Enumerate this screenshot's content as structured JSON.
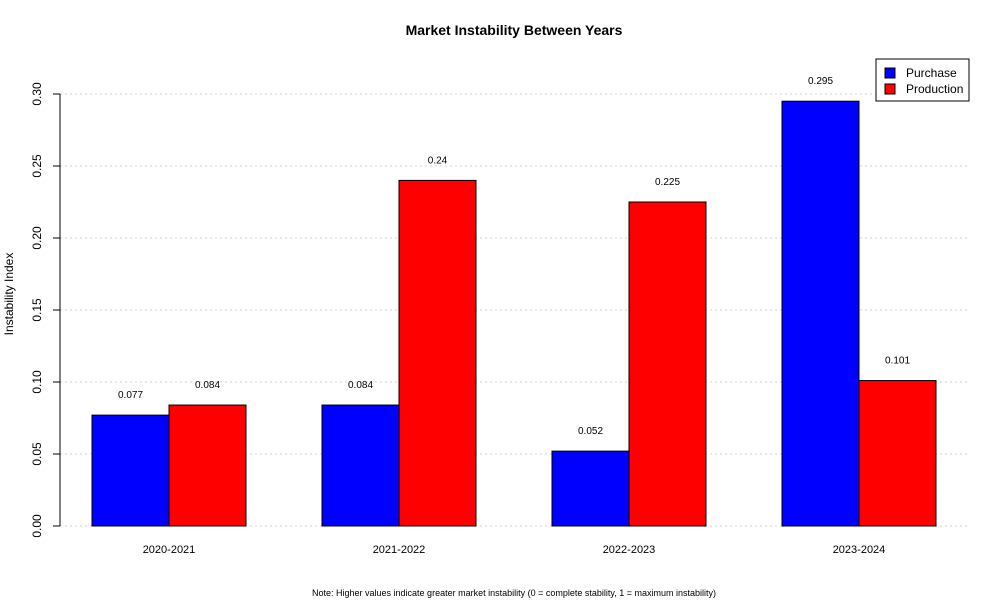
{
  "chart_data": {
    "type": "bar",
    "title": "Market Instability Between Years",
    "xlabel": "",
    "ylabel": "Instability Index",
    "categories": [
      "2020-2021",
      "2021-2022",
      "2022-2023",
      "2023-2024"
    ],
    "series": [
      {
        "name": "Purchase",
        "color": "#0000ff",
        "values": [
          0.077,
          0.084,
          0.052,
          0.295
        ],
        "labels": [
          "0.077",
          "0.084",
          "0.052",
          "0.295"
        ]
      },
      {
        "name": "Production",
        "color": "#ff0000",
        "values": [
          0.084,
          0.24,
          0.225,
          0.101
        ],
        "labels": [
          "0.084",
          "0.24",
          "0.225",
          "0.101"
        ]
      }
    ],
    "ylim": [
      0,
      0.3
    ],
    "yticks": [
      0,
      0.05,
      0.1,
      0.15,
      0.2,
      0.25,
      0.3
    ],
    "ytick_labels": [
      "0.00",
      "0.05",
      "0.10",
      "0.15",
      "0.20",
      "0.25",
      "0.30"
    ],
    "grid": "horizontal dotted",
    "legend_position": "top-right",
    "note": "Note: Higher values indicate greater market instability (0 = complete stability, 1 = maximum instability)"
  }
}
